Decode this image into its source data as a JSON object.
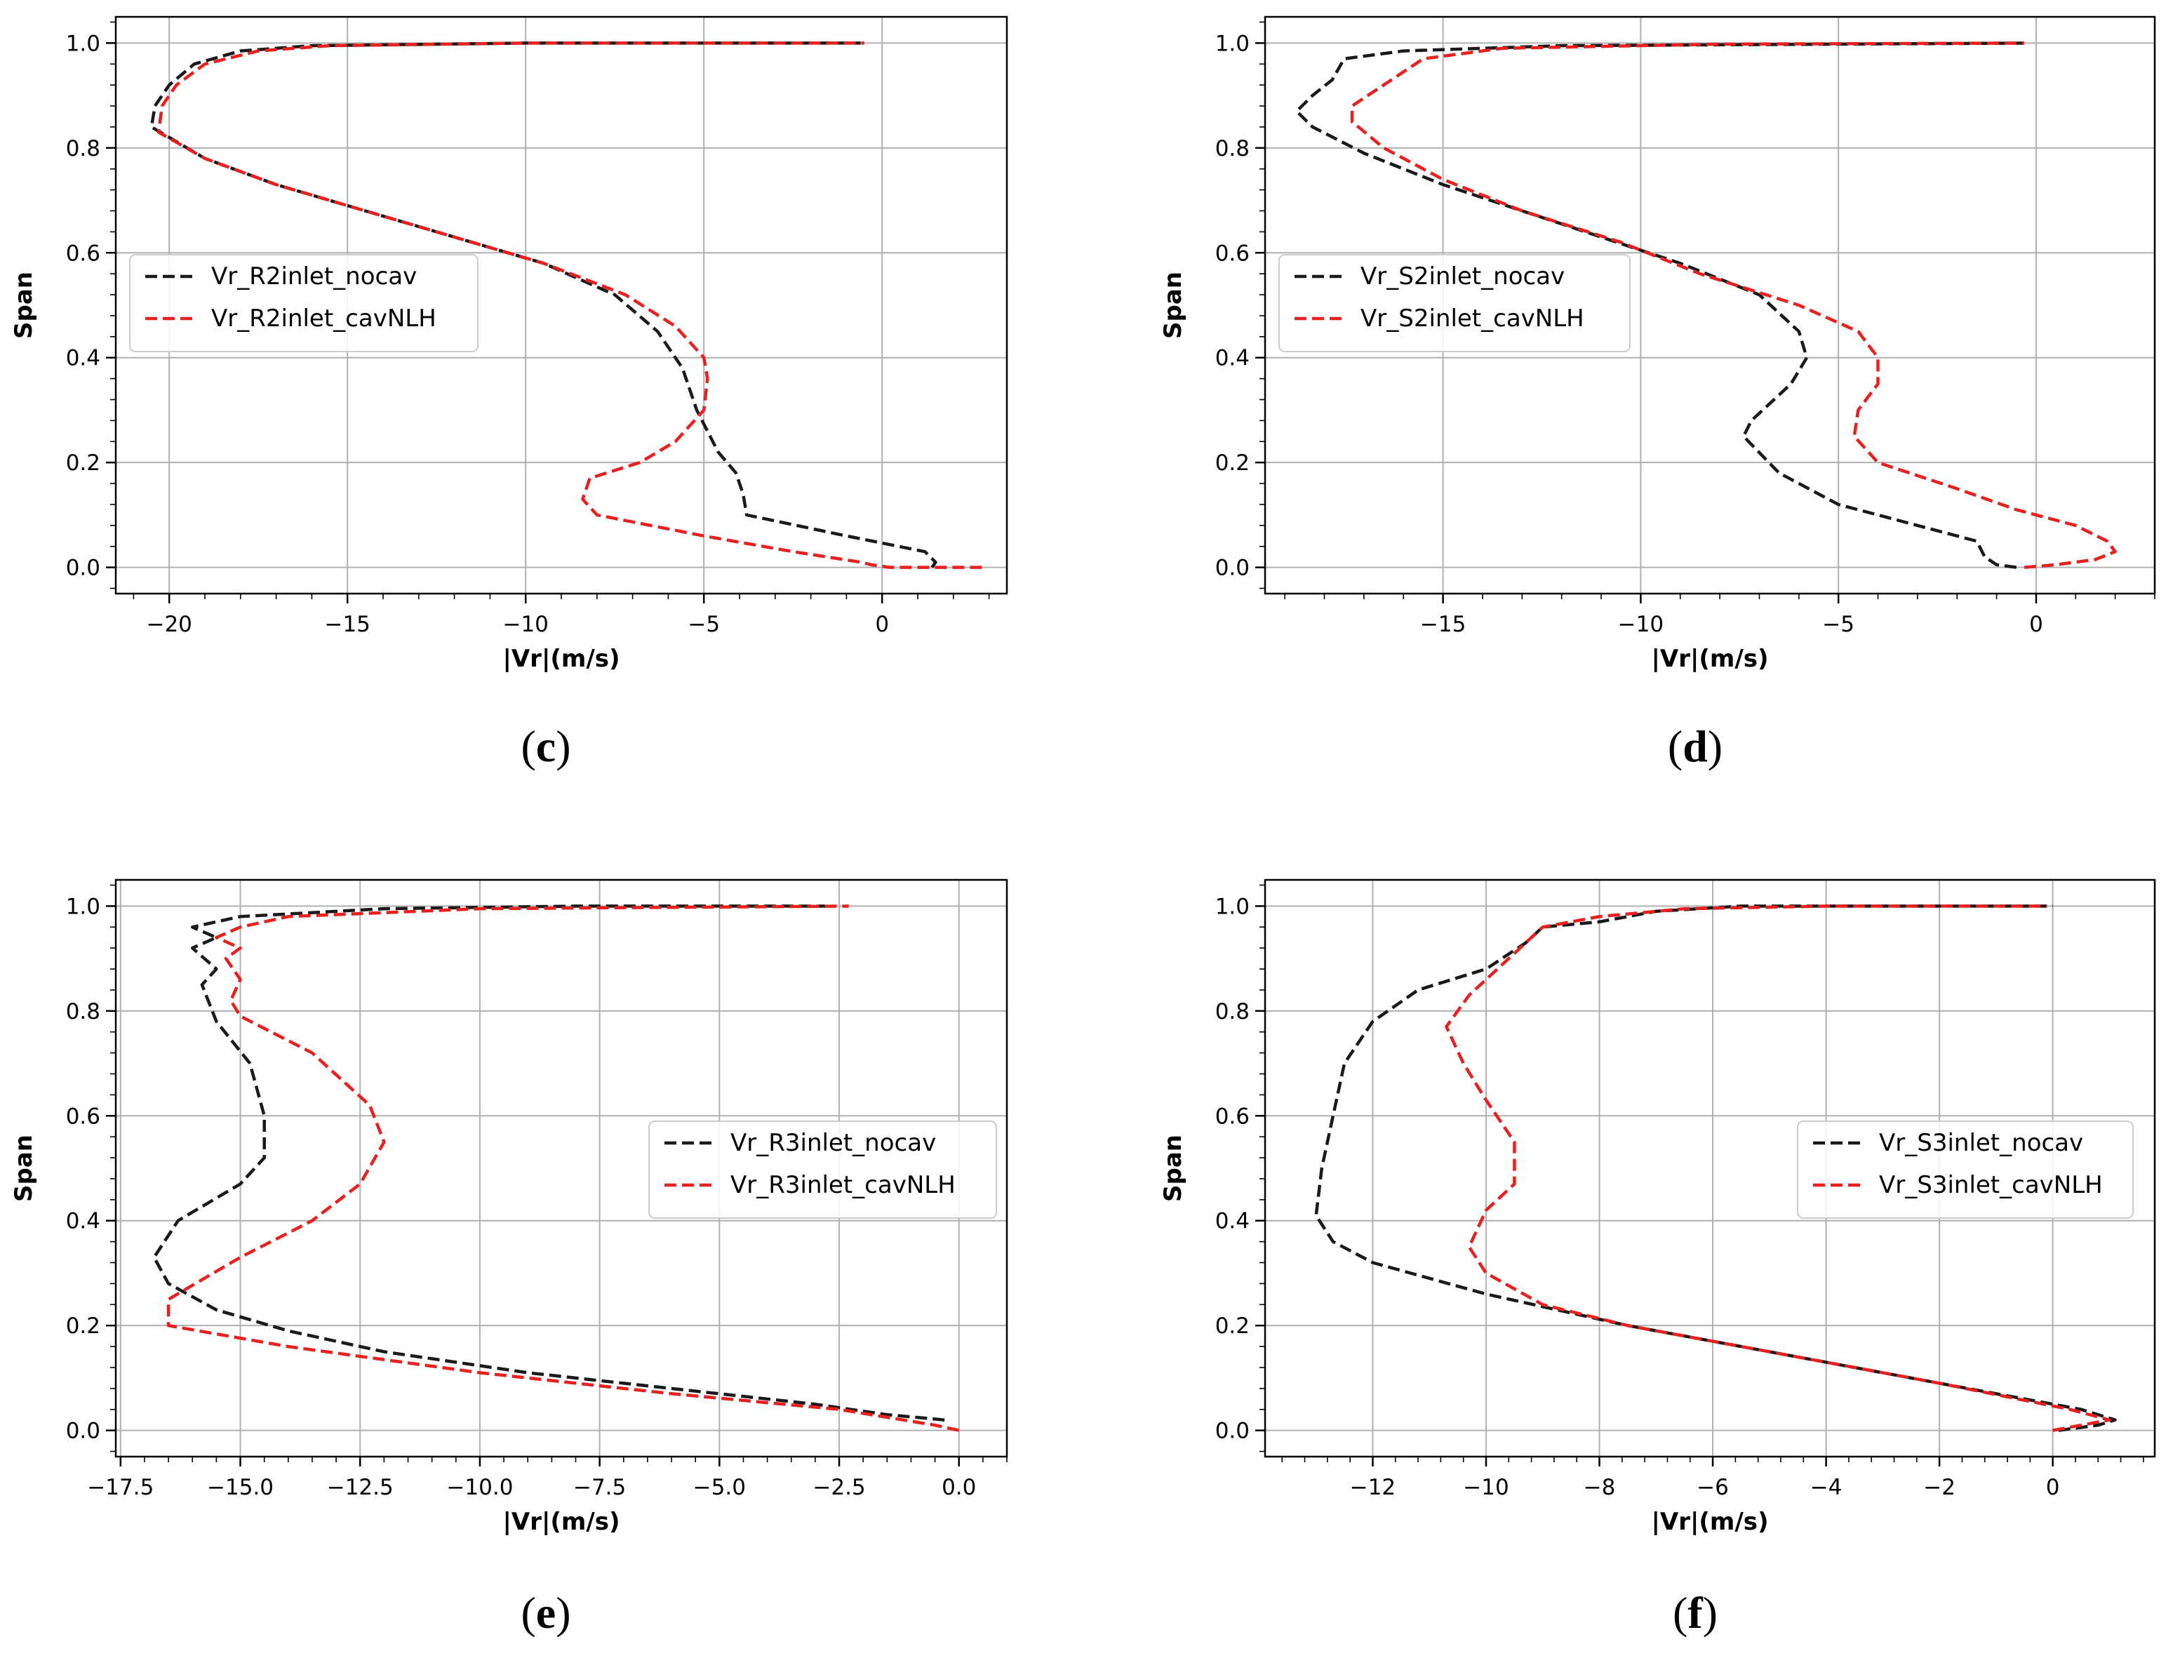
{
  "chart_data": [
    {
      "type": "line",
      "panel": "c",
      "xlabel": "|Vr|(m/s)",
      "ylabel": "Span",
      "xlim": [
        -21.5,
        3.5
      ],
      "ylim": [
        -0.05,
        1.05
      ],
      "xticks": [
        -20,
        -15,
        -10,
        -5,
        0
      ],
      "xtick_labels": [
        "−20",
        "−15",
        "−10",
        "−5",
        "0"
      ],
      "yticks": [
        0.0,
        0.2,
        0.4,
        0.6,
        0.8,
        1.0
      ],
      "ytick_labels": [
        "0.0",
        "0.2",
        "0.4",
        "0.6",
        "0.8",
        "1.0"
      ],
      "grid": true,
      "legend_position": "center-left",
      "series": [
        {
          "name": "Vr_R2inlet_nocav",
          "color": "#1a1a1a",
          "points": [
            [
              1.4,
              0.0
            ],
            [
              1.5,
              0.01
            ],
            [
              1.2,
              0.03
            ],
            [
              -1.0,
              0.06
            ],
            [
              -3.8,
              0.1
            ],
            [
              -3.9,
              0.14
            ],
            [
              -4.1,
              0.18
            ],
            [
              -4.6,
              0.22
            ],
            [
              -5.2,
              0.3
            ],
            [
              -5.6,
              0.38
            ],
            [
              -6.3,
              0.45
            ],
            [
              -7.5,
              0.52
            ],
            [
              -9.5,
              0.58
            ],
            [
              -12.0,
              0.63
            ],
            [
              -14.5,
              0.68
            ],
            [
              -17.0,
              0.73
            ],
            [
              -19.0,
              0.78
            ],
            [
              -20.5,
              0.84
            ],
            [
              -20.4,
              0.88
            ],
            [
              -20.0,
              0.92
            ],
            [
              -19.3,
              0.96
            ],
            [
              -18.0,
              0.985
            ],
            [
              -16.0,
              0.995
            ],
            [
              -10.0,
              1.0
            ],
            [
              -0.6,
              1.0
            ]
          ]
        },
        {
          "name": "Vr_R2inlet_cavNLH",
          "color": "#e8201f",
          "points": [
            [
              2.8,
              0.0
            ],
            [
              0.2,
              0.0
            ],
            [
              -0.3,
              0.005
            ],
            [
              -0.6,
              0.01
            ],
            [
              -2.5,
              0.03
            ],
            [
              -5.0,
              0.06
            ],
            [
              -8.0,
              0.1
            ],
            [
              -8.4,
              0.13
            ],
            [
              -8.2,
              0.17
            ],
            [
              -6.8,
              0.2
            ],
            [
              -5.8,
              0.24
            ],
            [
              -5.0,
              0.3
            ],
            [
              -4.9,
              0.36
            ],
            [
              -5.0,
              0.4
            ],
            [
              -5.8,
              0.46
            ],
            [
              -7.2,
              0.52
            ],
            [
              -9.5,
              0.58
            ],
            [
              -12.0,
              0.63
            ],
            [
              -14.5,
              0.68
            ],
            [
              -17.0,
              0.73
            ],
            [
              -19.0,
              0.78
            ],
            [
              -20.3,
              0.83
            ],
            [
              -20.2,
              0.88
            ],
            [
              -19.8,
              0.92
            ],
            [
              -19.0,
              0.96
            ],
            [
              -17.5,
              0.985
            ],
            [
              -15.5,
              0.995
            ],
            [
              -10.0,
              1.0
            ],
            [
              -0.5,
              1.0
            ]
          ]
        }
      ]
    },
    {
      "type": "line",
      "panel": "d",
      "xlabel": "|Vr|(m/s)",
      "ylabel": "Span",
      "xlim": [
        -19.5,
        3.0
      ],
      "ylim": [
        -0.05,
        1.05
      ],
      "xticks": [
        -15,
        -10,
        -5,
        0
      ],
      "xtick_labels": [
        "−15",
        "−10",
        "−5",
        "0"
      ],
      "yticks": [
        0.0,
        0.2,
        0.4,
        0.6,
        0.8,
        1.0
      ],
      "ytick_labels": [
        "0.0",
        "0.2",
        "0.4",
        "0.6",
        "0.8",
        "1.0"
      ],
      "grid": true,
      "legend_position": "center-left",
      "series": [
        {
          "name": "Vr_S2inlet_nocav",
          "color": "#1a1a1a",
          "points": [
            [
              -0.5,
              0.0
            ],
            [
              -1.0,
              0.005
            ],
            [
              -1.3,
              0.02
            ],
            [
              -1.5,
              0.05
            ],
            [
              -3.0,
              0.08
            ],
            [
              -5.0,
              0.12
            ],
            [
              -6.5,
              0.18
            ],
            [
              -7.4,
              0.25
            ],
            [
              -7.2,
              0.28
            ],
            [
              -6.2,
              0.35
            ],
            [
              -5.8,
              0.4
            ],
            [
              -6.0,
              0.45
            ],
            [
              -7.0,
              0.52
            ],
            [
              -9.0,
              0.58
            ],
            [
              -11.0,
              0.63
            ],
            [
              -13.0,
              0.68
            ],
            [
              -15.0,
              0.73
            ],
            [
              -17.0,
              0.79
            ],
            [
              -18.3,
              0.84
            ],
            [
              -18.7,
              0.87
            ],
            [
              -18.3,
              0.9
            ],
            [
              -17.8,
              0.93
            ],
            [
              -17.5,
              0.97
            ],
            [
              -16.0,
              0.985
            ],
            [
              -12.0,
              0.995
            ],
            [
              -0.2,
              1.0
            ]
          ]
        },
        {
          "name": "Vr_S2inlet_cavNLH",
          "color": "#e8201f",
          "points": [
            [
              -0.3,
              0.0
            ],
            [
              0.5,
              0.005
            ],
            [
              1.5,
              0.015
            ],
            [
              2.0,
              0.03
            ],
            [
              1.8,
              0.05
            ],
            [
              1.0,
              0.08
            ],
            [
              -0.5,
              0.11
            ],
            [
              -2.0,
              0.15
            ],
            [
              -4.0,
              0.2
            ],
            [
              -4.6,
              0.25
            ],
            [
              -4.5,
              0.3
            ],
            [
              -4.0,
              0.35
            ],
            [
              -4.0,
              0.4
            ],
            [
              -4.5,
              0.45
            ],
            [
              -6.0,
              0.5
            ],
            [
              -8.5,
              0.56
            ],
            [
              -10.5,
              0.62
            ],
            [
              -13.0,
              0.68
            ],
            [
              -15.0,
              0.74
            ],
            [
              -16.5,
              0.8
            ],
            [
              -17.3,
              0.85
            ],
            [
              -17.3,
              0.88
            ],
            [
              -16.5,
              0.92
            ],
            [
              -15.5,
              0.97
            ],
            [
              -13.5,
              0.99
            ],
            [
              -8.0,
              0.998
            ],
            [
              -0.3,
              1.0
            ]
          ]
        }
      ]
    },
    {
      "type": "line",
      "panel": "e",
      "xlabel": "|Vr|(m/s)",
      "ylabel": "Span",
      "xlim": [
        -17.6,
        1.0
      ],
      "ylim": [
        -0.05,
        1.05
      ],
      "xticks": [
        -17.5,
        -15.0,
        -12.5,
        -10.0,
        -7.5,
        -5.0,
        -2.5,
        0.0
      ],
      "xtick_labels": [
        "−17.5",
        "−15.0",
        "−12.5",
        "−10.0",
        "−7.5",
        "−5.0",
        "−2.5",
        "0.0"
      ],
      "yticks": [
        0.0,
        0.2,
        0.4,
        0.6,
        0.8,
        1.0
      ],
      "ytick_labels": [
        "0.0",
        "0.2",
        "0.4",
        "0.6",
        "0.8",
        "1.0"
      ],
      "grid": true,
      "legend_position": "center-right",
      "series": [
        {
          "name": "Vr_R3inlet_nocav",
          "color": "#1a1a1a",
          "points": [
            [
              -0.3,
              0.02
            ],
            [
              -1.5,
              0.03
            ],
            [
              -3.0,
              0.05
            ],
            [
              -6.0,
              0.08
            ],
            [
              -9.0,
              0.11
            ],
            [
              -12.0,
              0.15
            ],
            [
              -14.0,
              0.19
            ],
            [
              -15.5,
              0.23
            ],
            [
              -16.5,
              0.28
            ],
            [
              -16.8,
              0.33
            ],
            [
              -16.3,
              0.4
            ],
            [
              -15.0,
              0.47
            ],
            [
              -14.5,
              0.52
            ],
            [
              -14.5,
              0.6
            ],
            [
              -14.8,
              0.7
            ],
            [
              -15.5,
              0.78
            ],
            [
              -15.8,
              0.85
            ],
            [
              -15.5,
              0.88
            ],
            [
              -16.0,
              0.92
            ],
            [
              -15.5,
              0.94
            ],
            [
              -16.0,
              0.96
            ],
            [
              -15.0,
              0.98
            ],
            [
              -12.0,
              0.995
            ],
            [
              -8.0,
              1.0
            ],
            [
              -2.8,
              1.0
            ]
          ]
        },
        {
          "name": "Vr_R3inlet_cavNLH",
          "color": "#e8201f",
          "points": [
            [
              0.0,
              0.0
            ],
            [
              -0.5,
              0.01
            ],
            [
              -2.5,
              0.04
            ],
            [
              -6.0,
              0.07
            ],
            [
              -10.0,
              0.11
            ],
            [
              -14.0,
              0.16
            ],
            [
              -16.5,
              0.2
            ],
            [
              -16.5,
              0.25
            ],
            [
              -15.0,
              0.33
            ],
            [
              -13.5,
              0.4
            ],
            [
              -12.5,
              0.47
            ],
            [
              -12.0,
              0.55
            ],
            [
              -12.3,
              0.62
            ],
            [
              -13.5,
              0.72
            ],
            [
              -15.0,
              0.79
            ],
            [
              -15.2,
              0.82
            ],
            [
              -15.0,
              0.86
            ],
            [
              -15.3,
              0.9
            ],
            [
              -15.0,
              0.92
            ],
            [
              -15.5,
              0.94
            ],
            [
              -15.0,
              0.96
            ],
            [
              -14.0,
              0.98
            ],
            [
              -10.0,
              0.995
            ],
            [
              -2.3,
              1.0
            ]
          ]
        }
      ]
    },
    {
      "type": "line",
      "panel": "f",
      "xlabel": "|Vr|(m/s)",
      "ylabel": "Span",
      "xlim": [
        -13.9,
        1.8
      ],
      "ylim": [
        -0.05,
        1.05
      ],
      "xticks": [
        -12,
        -10,
        -8,
        -6,
        -4,
        -2,
        0
      ],
      "xtick_labels": [
        "−12",
        "−10",
        "−8",
        "−6",
        "−4",
        "−2",
        "0"
      ],
      "yticks": [
        0.0,
        0.2,
        0.4,
        0.6,
        0.8,
        1.0
      ],
      "ytick_labels": [
        "0.0",
        "0.2",
        "0.4",
        "0.6",
        "0.8",
        "1.0"
      ],
      "grid": true,
      "legend_position": "center-right",
      "series": [
        {
          "name": "Vr_S3inlet_nocav",
          "color": "#1a1a1a",
          "points": [
            [
              0.1,
              0.0
            ],
            [
              0.8,
              0.01
            ],
            [
              1.1,
              0.02
            ],
            [
              0.5,
              0.04
            ],
            [
              -2.0,
              0.09
            ],
            [
              -5.0,
              0.15
            ],
            [
              -7.5,
              0.2
            ],
            [
              -10.0,
              0.26
            ],
            [
              -12.0,
              0.32
            ],
            [
              -12.7,
              0.36
            ],
            [
              -13.0,
              0.41
            ],
            [
              -12.9,
              0.5
            ],
            [
              -12.7,
              0.6
            ],
            [
              -12.5,
              0.7
            ],
            [
              -12.0,
              0.78
            ],
            [
              -11.2,
              0.84
            ],
            [
              -10.0,
              0.88
            ],
            [
              -9.3,
              0.93
            ],
            [
              -9.0,
              0.96
            ],
            [
              -8.0,
              0.97
            ],
            [
              -7.0,
              0.99
            ],
            [
              -5.5,
              1.0
            ],
            [
              0.0,
              1.0
            ]
          ]
        },
        {
          "name": "Vr_S3inlet_cavNLH",
          "color": "#e8201f",
          "points": [
            [
              0.0,
              0.0
            ],
            [
              0.5,
              0.01
            ],
            [
              1.0,
              0.02
            ],
            [
              0.3,
              0.04
            ],
            [
              -2.0,
              0.09
            ],
            [
              -5.0,
              0.15
            ],
            [
              -7.5,
              0.2
            ],
            [
              -9.0,
              0.24
            ],
            [
              -10.0,
              0.3
            ],
            [
              -10.3,
              0.35
            ],
            [
              -10.0,
              0.42
            ],
            [
              -9.5,
              0.47
            ],
            [
              -9.5,
              0.55
            ],
            [
              -10.0,
              0.63
            ],
            [
              -10.4,
              0.7
            ],
            [
              -10.7,
              0.77
            ],
            [
              -10.3,
              0.83
            ],
            [
              -9.5,
              0.91
            ],
            [
              -9.0,
              0.96
            ],
            [
              -8.0,
              0.98
            ],
            [
              -6.5,
              0.995
            ],
            [
              -4.0,
              1.0
            ],
            [
              -0.1,
              1.0
            ]
          ]
        }
      ]
    }
  ],
  "captions": {
    "c": "c",
    "d": "d",
    "e": "e",
    "f": "f"
  }
}
